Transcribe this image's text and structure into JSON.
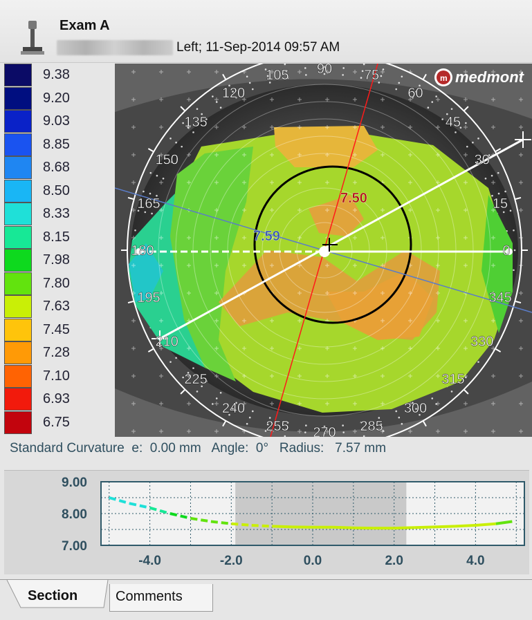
{
  "header": {
    "title": "Exam A",
    "exam_info": "Left; 11-Sep-2014 09:57 AM"
  },
  "legend": {
    "items": [
      {
        "value": "9.38",
        "color": "#0b0b66"
      },
      {
        "value": "9.20",
        "color": "#000e80"
      },
      {
        "value": "9.03",
        "color": "#0a22c8"
      },
      {
        "value": "8.85",
        "color": "#1a53f0"
      },
      {
        "value": "8.68",
        "color": "#1f86f2"
      },
      {
        "value": "8.50",
        "color": "#19b6f5"
      },
      {
        "value": "8.33",
        "color": "#1fe0d8"
      },
      {
        "value": "8.15",
        "color": "#17e896"
      },
      {
        "value": "7.98",
        "color": "#0ed91e"
      },
      {
        "value": "7.80",
        "color": "#62e30e"
      },
      {
        "value": "7.63",
        "color": "#c9ef06"
      },
      {
        "value": "7.45",
        "color": "#ffc40b"
      },
      {
        "value": "7.28",
        "color": "#ff9a06"
      },
      {
        "value": "7.10",
        "color": "#ff6303"
      },
      {
        "value": "6.93",
        "color": "#f21a0c"
      },
      {
        "value": "6.75",
        "color": "#c2040d"
      }
    ]
  },
  "map": {
    "brand": "medmont",
    "degree_labels": [
      "0",
      "15",
      "30",
      "45",
      "60",
      "75",
      "90",
      "105",
      "120",
      "135",
      "150",
      "165",
      "180",
      "195",
      "210",
      "225",
      "240",
      "255",
      "270",
      "285",
      "300",
      "315",
      "330",
      "345"
    ],
    "steep_value": "7.50",
    "flat_value": "7.59"
  },
  "status": {
    "text": "Standard Curvature  e:  0.00 mm   Angle:  0°   Radius:   7.57 mm"
  },
  "chart_data": {
    "type": "line",
    "x": [
      -5.0,
      -4.5,
      -4.0,
      -3.5,
      -3.0,
      -2.5,
      -2.0,
      -1.5,
      -1.0,
      -0.5,
      0.0,
      0.5,
      1.0,
      1.5,
      2.0,
      2.5,
      3.0,
      3.5,
      4.0,
      4.5,
      4.9
    ],
    "y": [
      8.5,
      8.32,
      8.18,
      8.0,
      7.85,
      7.75,
      7.68,
      7.63,
      7.6,
      7.58,
      7.57,
      7.57,
      7.55,
      7.54,
      7.54,
      7.56,
      7.58,
      7.6,
      7.63,
      7.68,
      7.75
    ],
    "ylim": [
      7.0,
      9.0
    ],
    "xlim": [
      -5.2,
      5.2
    ],
    "yticks": [
      "9.00",
      "8.00",
      "7.00"
    ],
    "xticks": [
      "-4.0",
      "-2.0",
      "0.0",
      "2.0",
      "4.0"
    ],
    "ytick_values": [
      9.0,
      8.0,
      7.0
    ],
    "xtick_values": [
      -4.0,
      -2.0,
      0.0,
      2.0,
      4.0
    ],
    "highlight_range": [
      -1.9,
      2.3
    ],
    "grid": true
  },
  "tabs": {
    "section": "Section",
    "comments": "Comments"
  }
}
